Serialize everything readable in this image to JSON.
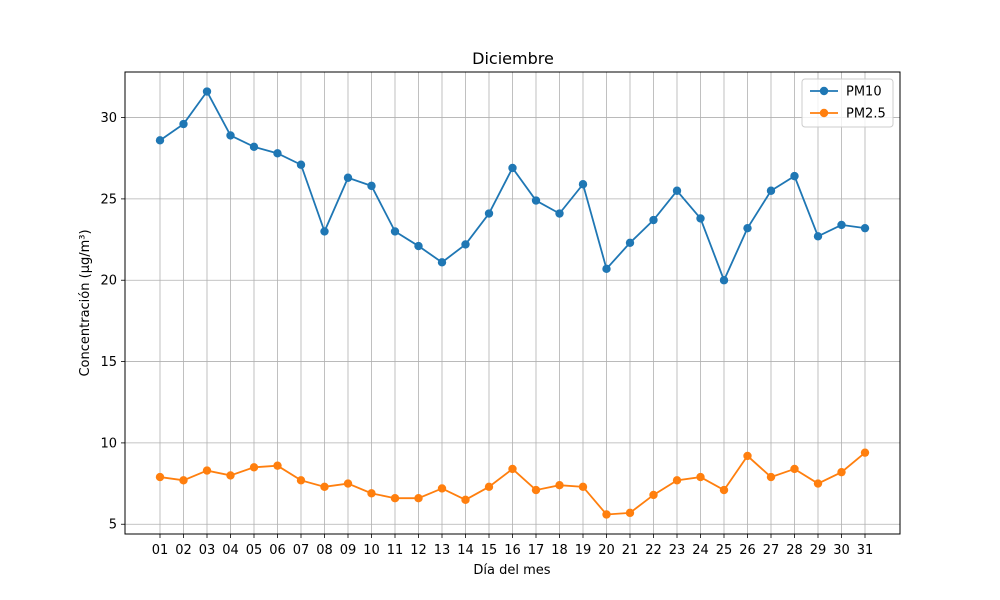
{
  "chart_data": {
    "type": "line",
    "title": "Diciembre",
    "xlabel": "Día del mes",
    "ylabel": "Concentración (µg/m³)",
    "categories": [
      "01",
      "02",
      "03",
      "04",
      "05",
      "06",
      "07",
      "08",
      "09",
      "10",
      "11",
      "12",
      "13",
      "14",
      "15",
      "16",
      "17",
      "18",
      "19",
      "20",
      "21",
      "22",
      "23",
      "24",
      "25",
      "26",
      "27",
      "28",
      "29",
      "30",
      "31"
    ],
    "yticks": [
      5,
      10,
      15,
      20,
      25,
      30
    ],
    "ylim": [
      4.4,
      32.8
    ],
    "grid": true,
    "legend_position": "top-right",
    "series": [
      {
        "name": "PM10",
        "color": "#1f77b4",
        "values": [
          28.6,
          29.6,
          31.6,
          28.9,
          28.2,
          27.8,
          27.1,
          23.0,
          26.3,
          25.8,
          23.0,
          22.1,
          21.1,
          22.2,
          24.1,
          26.9,
          24.9,
          24.1,
          25.9,
          20.7,
          22.3,
          23.7,
          25.5,
          23.8,
          20.0,
          23.2,
          25.5,
          26.4,
          22.7,
          23.4,
          23.2
        ]
      },
      {
        "name": "PM2.5",
        "color": "#ff7f0e",
        "values": [
          7.9,
          7.7,
          8.3,
          8.0,
          8.5,
          8.6,
          7.7,
          7.3,
          7.5,
          6.9,
          6.6,
          6.6,
          7.2,
          6.5,
          7.3,
          8.4,
          7.1,
          7.4,
          7.3,
          5.6,
          5.7,
          6.8,
          7.7,
          7.9,
          7.1,
          9.2,
          7.9,
          8.4,
          7.5,
          8.2,
          9.4
        ]
      }
    ]
  }
}
